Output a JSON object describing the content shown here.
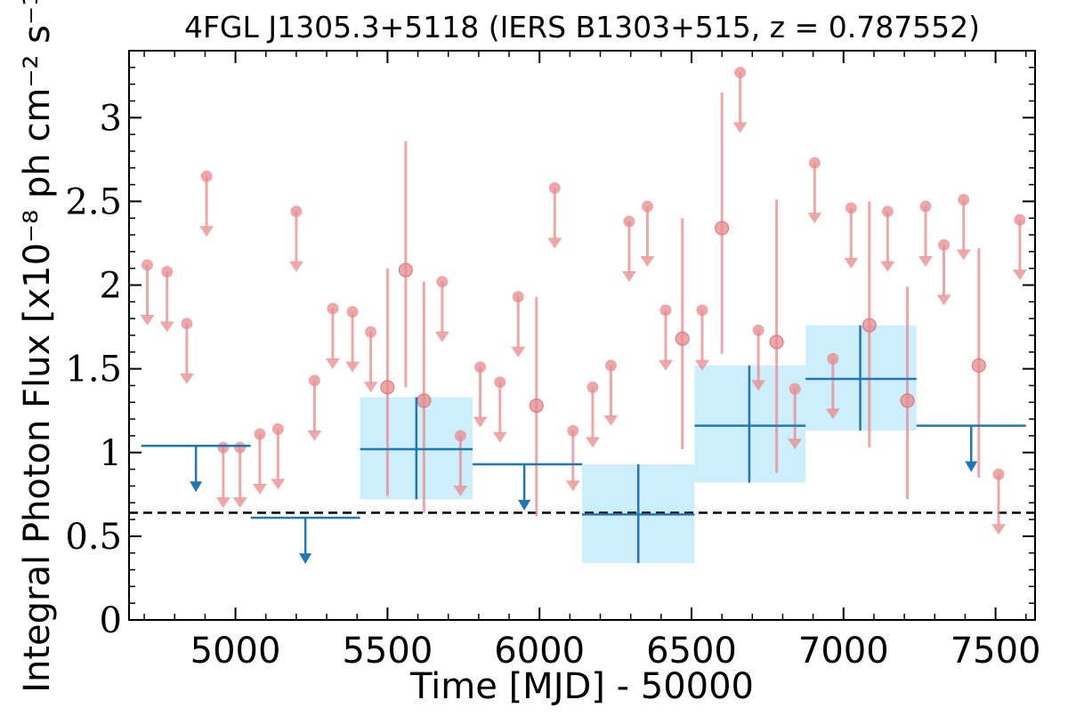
{
  "chart_data": {
    "type": "scatter",
    "title": "4FGL J1305.3+5118 (IERS B1303+515, z = 0.787552)",
    "xlabel": "Time [MJD] - 50000",
    "ylabel": "Integral Photon Flux [x10⁻⁸ ph cm⁻² s⁻¹]",
    "xlim": [
      4650,
      7630
    ],
    "ylim": [
      0,
      3.4
    ],
    "x_ticks": [
      5000,
      5500,
      6000,
      6500,
      7000,
      7500
    ],
    "x_tick_labels": [
      "5000",
      "5500",
      "6000",
      "6500",
      "7000",
      "7500"
    ],
    "y_ticks": [
      0,
      0.5,
      1,
      1.5,
      2,
      2.5,
      3
    ],
    "y_tick_labels": [
      "0",
      "0.5",
      "1",
      "1.5",
      "2",
      "2.5",
      "3"
    ],
    "grid": false,
    "reference_line": {
      "y": 0.64,
      "style": "dashed",
      "color": "#000000"
    },
    "series": [
      {
        "kind": "short_bin_upper_limits",
        "color": "#e8898c",
        "points": [
          {
            "x": 4710,
            "y": 2.12
          },
          {
            "x": 4775,
            "y": 2.08
          },
          {
            "x": 4840,
            "y": 1.77
          },
          {
            "x": 4905,
            "y": 2.65
          },
          {
            "x": 4960,
            "y": 1.03
          },
          {
            "x": 5015,
            "y": 1.03
          },
          {
            "x": 5080,
            "y": 1.11
          },
          {
            "x": 5140,
            "y": 1.14
          },
          {
            "x": 5200,
            "y": 2.44
          },
          {
            "x": 5260,
            "y": 1.43
          },
          {
            "x": 5320,
            "y": 1.86
          },
          {
            "x": 5385,
            "y": 1.84
          },
          {
            "x": 5445,
            "y": 1.72
          },
          {
            "x": 5680,
            "y": 2.02
          },
          {
            "x": 5740,
            "y": 1.1
          },
          {
            "x": 5805,
            "y": 1.51
          },
          {
            "x": 5870,
            "y": 1.42
          },
          {
            "x": 5930,
            "y": 1.93
          },
          {
            "x": 6050,
            "y": 2.58
          },
          {
            "x": 6110,
            "y": 1.13
          },
          {
            "x": 6175,
            "y": 1.39
          },
          {
            "x": 6235,
            "y": 1.52
          },
          {
            "x": 6295,
            "y": 2.38
          },
          {
            "x": 6355,
            "y": 2.47
          },
          {
            "x": 6415,
            "y": 1.85
          },
          {
            "x": 6535,
            "y": 1.85
          },
          {
            "x": 6720,
            "y": 1.73
          },
          {
            "x": 6840,
            "y": 1.38
          },
          {
            "x": 6905,
            "y": 2.73
          },
          {
            "x": 6965,
            "y": 1.56
          },
          {
            "x": 7025,
            "y": 2.46
          },
          {
            "x": 7145,
            "y": 2.44
          },
          {
            "x": 7270,
            "y": 2.47
          },
          {
            "x": 7330,
            "y": 2.24
          },
          {
            "x": 7395,
            "y": 2.51
          },
          {
            "x": 7510,
            "y": 0.87
          },
          {
            "x": 7580,
            "y": 2.39
          }
        ]
      },
      {
        "kind": "short_bin_detections",
        "color": "#e8898c",
        "points": [
          {
            "x": 5500,
            "y": 1.39,
            "ylo": 0.74,
            "yhi": 2.1
          },
          {
            "x": 5560,
            "y": 2.09,
            "ylo": 1.39,
            "yhi": 2.86
          },
          {
            "x": 5620,
            "y": 1.31,
            "ylo": 0.64,
            "yhi": 2.02
          },
          {
            "x": 5990,
            "y": 1.28,
            "ylo": 0.62,
            "yhi": 1.93
          },
          {
            "x": 6470,
            "y": 1.68,
            "ylo": 1.02,
            "yhi": 2.4
          },
          {
            "x": 6600,
            "y": 2.34,
            "ylo": 1.59,
            "yhi": 3.15
          },
          {
            "x": 6780,
            "y": 1.66,
            "ylo": 0.88,
            "yhi": 2.51
          },
          {
            "x": 7085,
            "y": 1.76,
            "ylo": 1.03,
            "yhi": 2.5
          },
          {
            "x": 7210,
            "y": 1.31,
            "ylo": 0.72,
            "yhi": 1.99
          },
          {
            "x": 7445,
            "y": 1.52,
            "ylo": 0.85,
            "yhi": 2.22
          }
        ],
        "extra_upper_limit": {
          "x": 6660,
          "y": 3.27
        }
      },
      {
        "kind": "long_bin_upper_limits",
        "color": "#1f77b4",
        "points": [
          {
            "x": 4870,
            "xlo": 4690,
            "xhi": 5050,
            "y": 1.04
          },
          {
            "x": 5230,
            "xlo": 5050,
            "xhi": 5410,
            "y": 0.61
          },
          {
            "x": 5950,
            "xlo": 5780,
            "xhi": 6140,
            "y": 0.93
          },
          {
            "x": 7420,
            "xlo": 7240,
            "xhi": 7600,
            "y": 1.16
          }
        ]
      },
      {
        "kind": "long_bin_detections",
        "color": "#1f77b4",
        "band_color": "#cdeefc",
        "points": [
          {
            "x": 5595,
            "xlo": 5410,
            "xhi": 5780,
            "y": 1.02,
            "ylo": 0.72,
            "yhi": 1.33
          },
          {
            "x": 6325,
            "xlo": 6140,
            "xhi": 6510,
            "y": 0.63,
            "ylo": 0.34,
            "yhi": 0.93
          },
          {
            "x": 6690,
            "xlo": 6510,
            "xhi": 6875,
            "y": 1.16,
            "ylo": 0.82,
            "yhi": 1.52
          },
          {
            "x": 7055,
            "xlo": 6875,
            "xhi": 7240,
            "y": 1.44,
            "ylo": 1.13,
            "yhi": 1.76
          }
        ]
      }
    ]
  }
}
